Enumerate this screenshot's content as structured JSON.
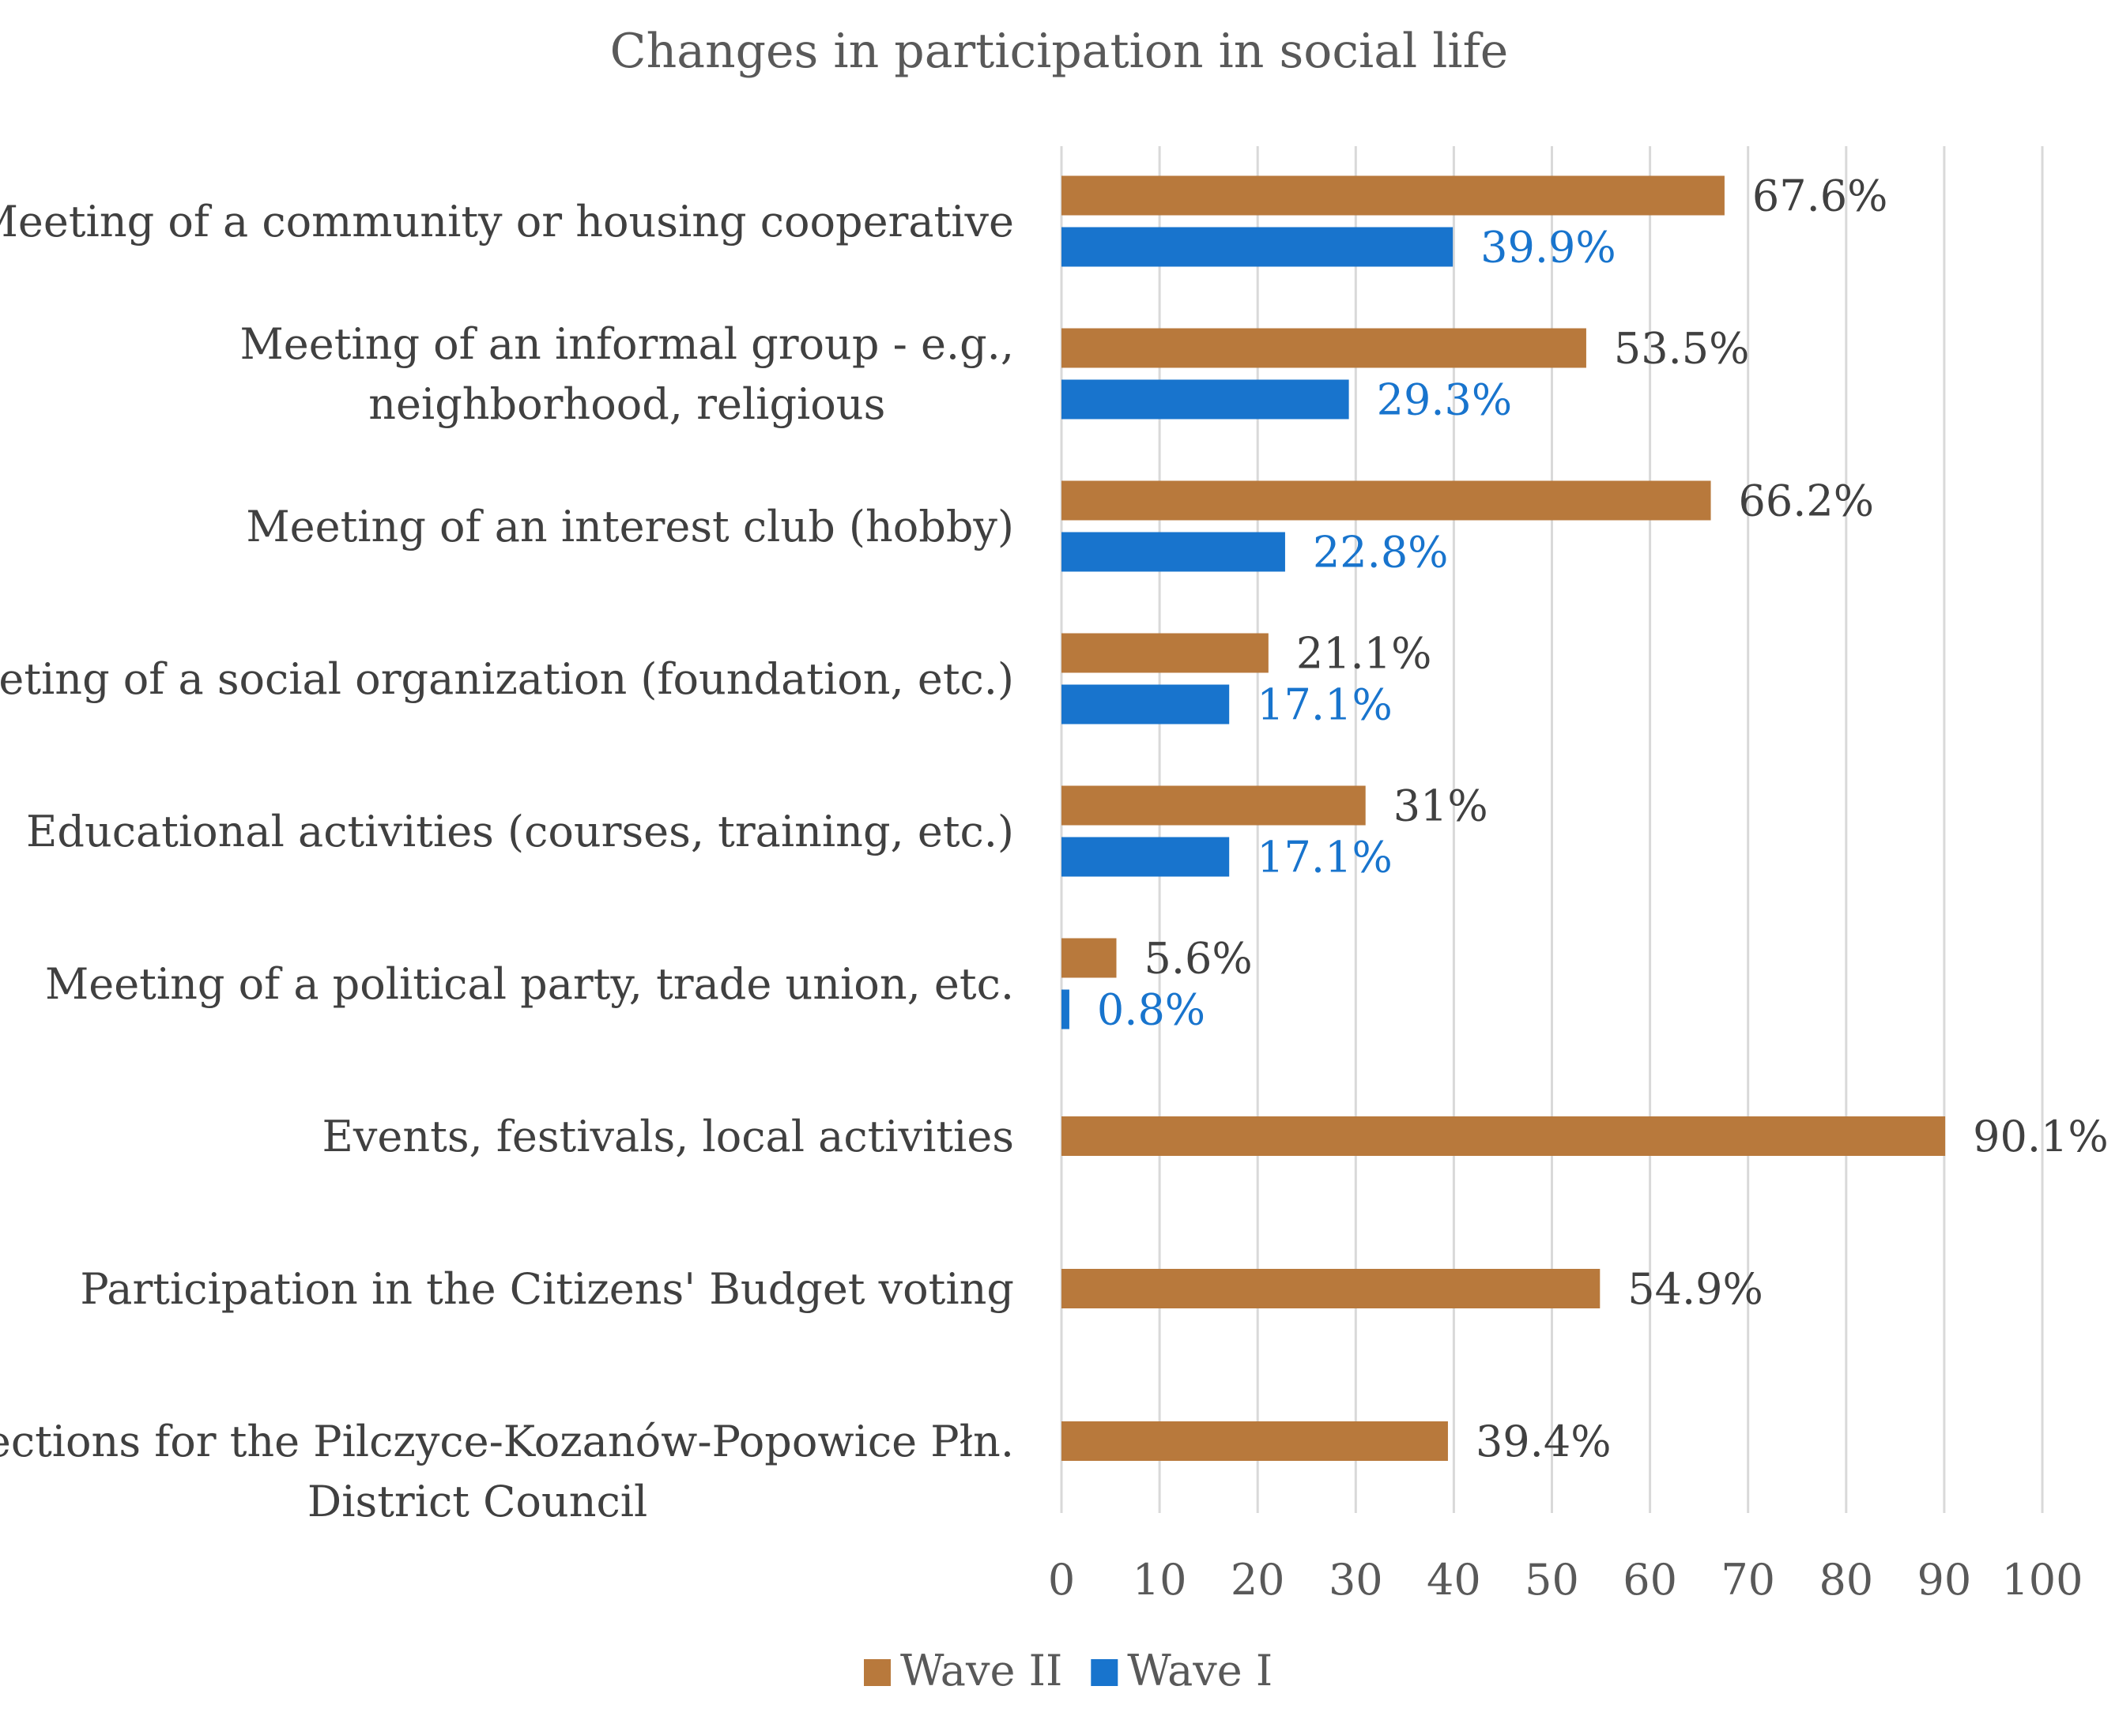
{
  "chart_data": {
    "type": "bar",
    "orientation": "horizontal",
    "title": "Changes in participation in social life",
    "categories": [
      [
        "Meeting of a community or housing cooperative"
      ],
      [
        "Meeting of an informal group - e.g.,",
        "neighborhood, religious"
      ],
      [
        "Meeting of an interest club (hobby)"
      ],
      [
        "Meeting of a social organization (foundation, etc.)"
      ],
      [
        "Educational activities (courses, training, etc.)"
      ],
      [
        "Meeting of a political party, trade union, etc."
      ],
      [
        "Events, festivals, local activities"
      ],
      [
        "Participation in the Citizens' Budget voting"
      ],
      [
        "Elections for the Pilczyce-Kozanów-Popowice Płn.",
        "District Council"
      ]
    ],
    "series": [
      {
        "name": "Wave II",
        "color": "#b8793c",
        "label_color": "#404040",
        "values": [
          67.6,
          53.5,
          66.2,
          21.1,
          31,
          5.6,
          90.1,
          54.9,
          39.4
        ],
        "labels": [
          "67.6%",
          "53.5%",
          "66.2%",
          "21.1%",
          "31%",
          "5.6%",
          "90.1%",
          "54.9%",
          "39.4%"
        ]
      },
      {
        "name": "Wave I",
        "color": "#1874cd",
        "label_color": "#1874cd",
        "values": [
          39.9,
          29.3,
          22.8,
          17.1,
          17.1,
          0.8,
          null,
          null,
          null
        ],
        "labels": [
          "39.9%",
          "29.3%",
          "22.8%",
          "17.1%",
          "17.1%",
          "0.8%",
          null,
          null,
          null
        ]
      }
    ],
    "x_ticks": [
      0,
      10,
      20,
      30,
      40,
      50,
      60,
      70,
      80,
      90,
      100
    ],
    "xlim": [
      0,
      100
    ],
    "xlabel": "",
    "ylabel": "",
    "grid": true,
    "legend": {
      "position": "bottom",
      "entries": [
        "Wave II",
        "Wave I"
      ]
    }
  }
}
